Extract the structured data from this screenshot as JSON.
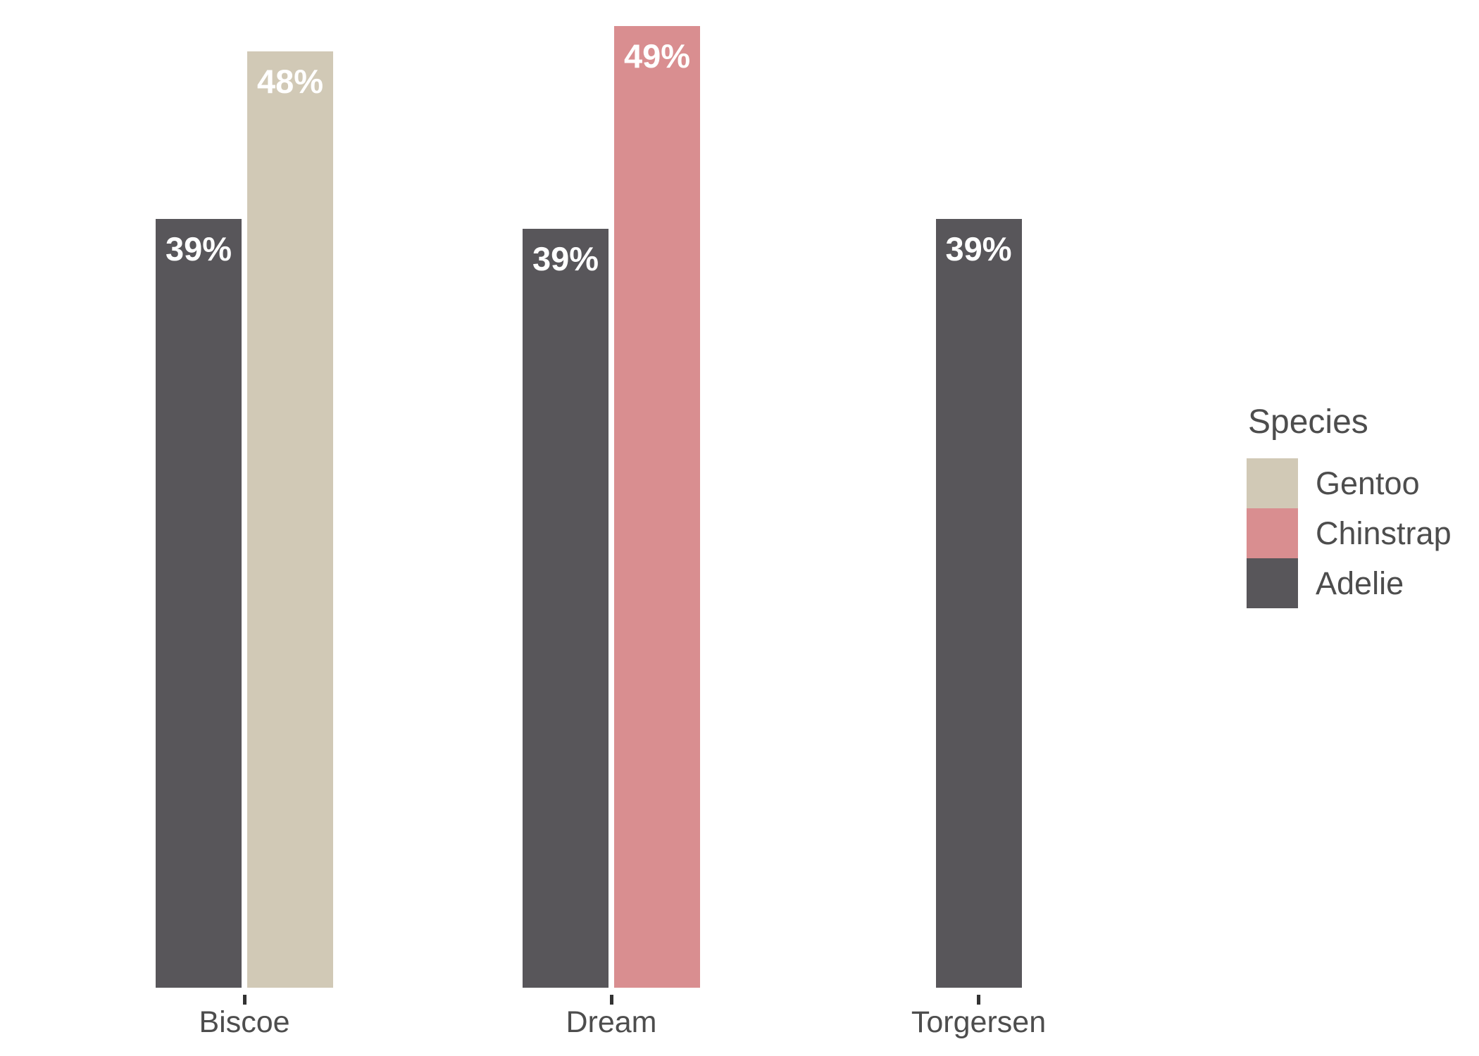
{
  "chart_data": {
    "type": "bar",
    "title": "",
    "orientation": "vertical",
    "categories": [
      "Biscoe",
      "Dream",
      "Torgersen"
    ],
    "value_format": "percent",
    "grid": false,
    "x_axis": {
      "ticks": true,
      "line": false
    },
    "y_axis": {
      "shown": false
    },
    "ylim": [
      0,
      50
    ],
    "colors": {
      "Gentoo": "#d1c9b6",
      "Chinstrap": "#d98e90",
      "Adelie": "#58565a"
    },
    "style": {
      "text_color": "#4d4d4d",
      "tick_color": "#333333",
      "bar_label_color": "#ffffff",
      "background": "#ffffff"
    },
    "islands": [
      {
        "bars": [
          {
            "species": "Adelie",
            "value": 39.0,
            "label": "39%"
          },
          {
            "species": "Gentoo",
            "value": 47.5,
            "label": "48%"
          }
        ]
      },
      {
        "bars": [
          {
            "species": "Adelie",
            "value": 38.5,
            "label": "39%"
          },
          {
            "species": "Chinstrap",
            "value": 48.8,
            "label": "49%"
          }
        ]
      },
      {
        "bars": [
          {
            "species": "Adelie",
            "value": 39.0,
            "label": "39%"
          }
        ]
      }
    ],
    "legend": {
      "title": "Species",
      "position": "right",
      "entries": [
        {
          "label": "Gentoo"
        },
        {
          "label": "Chinstrap"
        },
        {
          "label": "Adelie"
        }
      ]
    }
  }
}
